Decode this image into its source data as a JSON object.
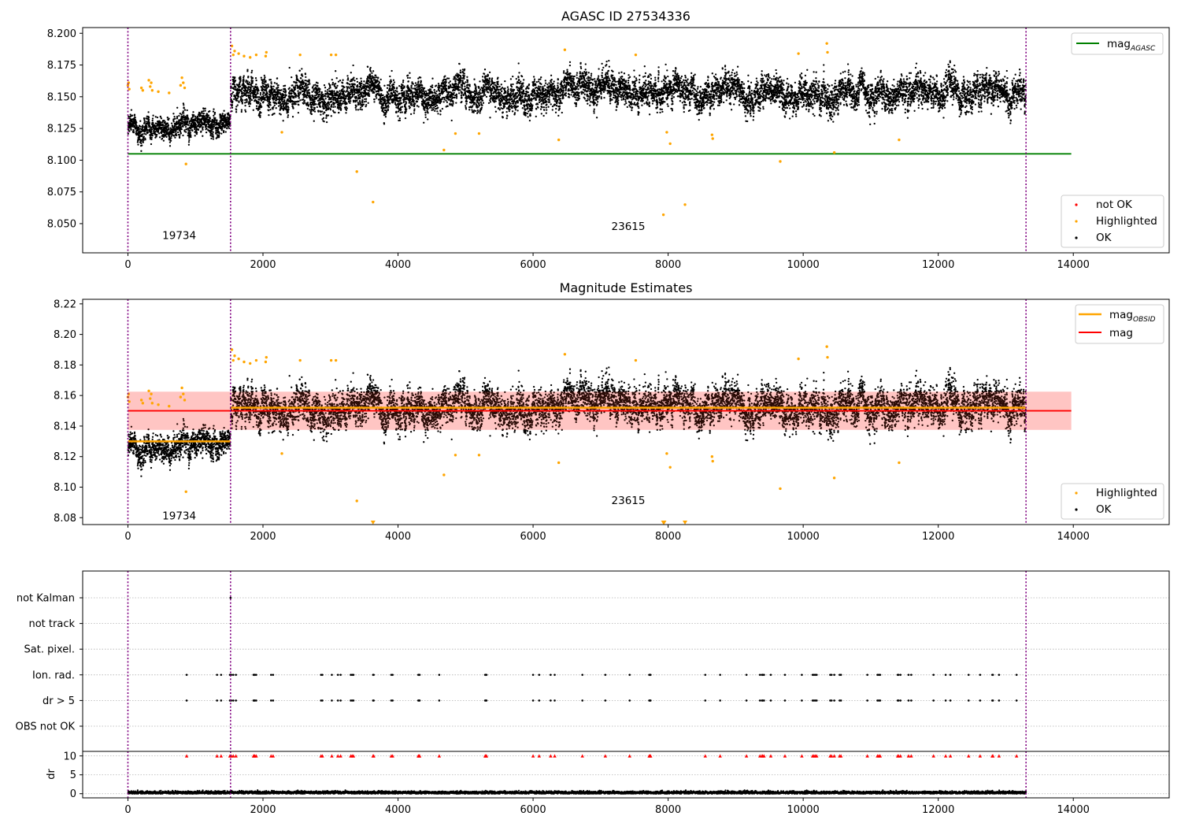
{
  "figure_title": "AGASC ID 27534336",
  "colors": {
    "ok": "#000000",
    "highlighted": "#ffa500",
    "not_ok": "#ff0000",
    "mag_agasc_line": "#008000",
    "mag_obsid_line": "#ffa500",
    "mag_line": "#ff0000",
    "mag_band": "#ffc0c8",
    "obsid_boundary": "#800080",
    "grid": "#b0b0b0"
  },
  "chart_data": [
    {
      "id": "agasc_panel",
      "type": "scatter",
      "title": "AGASC ID 27534336",
      "xlabel": "",
      "ylabel": "",
      "xlim": [
        -670,
        15420
      ],
      "ylim": [
        8.027,
        8.2045
      ],
      "xticks": [
        0,
        2000,
        4000,
        6000,
        8000,
        10000,
        12000,
        14000
      ],
      "xtick_labels": [
        "0",
        "2000",
        "4000",
        "6000",
        "8000",
        "10000",
        "12000",
        "14000"
      ],
      "yticks": [
        8.05,
        8.075,
        8.1,
        8.125,
        8.15,
        8.175,
        8.2
      ],
      "ytick_labels": [
        "8.050",
        "8.075",
        "8.100",
        "8.125",
        "8.150",
        "8.175",
        "8.200"
      ],
      "grid": false,
      "obsid_boundaries": [
        0,
        1520,
        13300
      ],
      "obsid_labels": [
        {
          "text": "19734",
          "x": 760,
          "y": 8.041
        },
        {
          "text": "23615",
          "x": 7410,
          "y": 8.048
        }
      ],
      "segments": [
        {
          "obsid": "19734",
          "x_range": [
            0,
            1520
          ],
          "mean": 8.128,
          "spread": 0.006
        },
        {
          "obsid": "23615",
          "x_range": [
            1520,
            13300
          ],
          "mean": 8.151,
          "spread": 0.0085
        }
      ],
      "mag_agasc": {
        "value": 8.105,
        "x_range": [
          0,
          13970
        ]
      },
      "highlighted_points": [
        [
          0,
          8.159
        ],
        [
          10,
          8.161
        ],
        [
          20,
          8.156
        ],
        [
          200,
          8.157
        ],
        [
          220,
          8.155
        ],
        [
          310,
          8.163
        ],
        [
          330,
          8.158
        ],
        [
          345,
          8.161
        ],
        [
          360,
          8.155
        ],
        [
          450,
          8.154
        ],
        [
          610,
          8.153
        ],
        [
          780,
          8.159
        ],
        [
          800,
          8.165
        ],
        [
          820,
          8.161
        ],
        [
          840,
          8.157
        ],
        [
          860,
          8.097
        ],
        [
          1540,
          8.19
        ],
        [
          1560,
          8.183
        ],
        [
          1580,
          8.186
        ],
        [
          1640,
          8.184
        ],
        [
          1720,
          8.182
        ],
        [
          1810,
          8.181
        ],
        [
          1900,
          8.183
        ],
        [
          2040,
          8.182
        ],
        [
          2050,
          8.185
        ],
        [
          2280,
          8.122
        ],
        [
          2550,
          8.183
        ],
        [
          3010,
          8.183
        ],
        [
          3080,
          8.183
        ],
        [
          3390,
          8.091
        ],
        [
          3630,
          8.067
        ],
        [
          4680,
          8.108
        ],
        [
          4850,
          8.121
        ],
        [
          5200,
          8.121
        ],
        [
          6380,
          8.116
        ],
        [
          6470,
          8.187
        ],
        [
          7520,
          8.183
        ],
        [
          7930,
          8.057
        ],
        [
          7980,
          8.122
        ],
        [
          8030,
          8.113
        ],
        [
          8250,
          8.065
        ],
        [
          8650,
          8.12
        ],
        [
          8660,
          8.117
        ],
        [
          9660,
          8.099
        ],
        [
          9930,
          8.184
        ],
        [
          10350,
          8.192
        ],
        [
          10360,
          8.185
        ],
        [
          10460,
          8.106
        ],
        [
          11420,
          8.116
        ]
      ],
      "not_ok_points": [],
      "legends": [
        {
          "position": "upper right",
          "items": [
            {
              "label": "mag",
              "subscript": "AGASC",
              "kind": "line",
              "color": "#008000"
            }
          ]
        },
        {
          "position": "lower right",
          "items": [
            {
              "label": "not OK",
              "kind": "dot",
              "color": "#ff0000"
            },
            {
              "label": "Highlighted",
              "kind": "dot",
              "color": "#ffa500"
            },
            {
              "label": "OK",
              "kind": "dot",
              "color": "#000000"
            }
          ]
        }
      ]
    },
    {
      "id": "magnitude_panel",
      "type": "scatter",
      "title": "Magnitude Estimates",
      "xlabel": "",
      "ylabel": "",
      "xlim": [
        -670,
        15420
      ],
      "ylim": [
        8.0755,
        8.223
      ],
      "xticks": [
        0,
        2000,
        4000,
        6000,
        8000,
        10000,
        12000,
        14000
      ],
      "xtick_labels": [
        "0",
        "2000",
        "4000",
        "6000",
        "8000",
        "10000",
        "12000",
        "14000"
      ],
      "yticks": [
        8.08,
        8.1,
        8.12,
        8.14,
        8.16,
        8.18,
        8.2,
        8.22
      ],
      "ytick_labels": [
        "8.08",
        "8.10",
        "8.12",
        "8.14",
        "8.16",
        "8.18",
        "8.20",
        "8.22"
      ],
      "grid": false,
      "obsid_boundaries": [
        0,
        1520,
        13300
      ],
      "obsid_labels": [
        {
          "text": "19734",
          "x": 760,
          "y": 8.0815
        },
        {
          "text": "23615",
          "x": 7410,
          "y": 8.0915
        }
      ],
      "segments": [
        {
          "obsid": "19734",
          "x_range": [
            0,
            1520
          ],
          "mean": 8.128,
          "spread": 0.006
        },
        {
          "obsid": "23615",
          "x_range": [
            1520,
            13300
          ],
          "mean": 8.151,
          "spread": 0.0085
        }
      ],
      "mag_obsid": [
        {
          "obsid": "19734",
          "value": 8.13,
          "x_range": [
            0,
            1520
          ]
        },
        {
          "obsid": "23615",
          "value": 8.152,
          "x_range": [
            1520,
            13300
          ]
        }
      ],
      "mag": {
        "value": 8.15,
        "band": [
          8.1375,
          8.1625
        ],
        "x_range": [
          0,
          13970
        ]
      },
      "highlighted_points": [
        [
          0,
          8.159
        ],
        [
          10,
          8.161
        ],
        [
          20,
          8.156
        ],
        [
          200,
          8.157
        ],
        [
          220,
          8.155
        ],
        [
          310,
          8.163
        ],
        [
          330,
          8.158
        ],
        [
          345,
          8.161
        ],
        [
          360,
          8.155
        ],
        [
          450,
          8.154
        ],
        [
          610,
          8.153
        ],
        [
          780,
          8.159
        ],
        [
          800,
          8.165
        ],
        [
          820,
          8.161
        ],
        [
          840,
          8.157
        ],
        [
          860,
          8.097
        ],
        [
          1540,
          8.19
        ],
        [
          1560,
          8.183
        ],
        [
          1580,
          8.186
        ],
        [
          1640,
          8.184
        ],
        [
          1720,
          8.182
        ],
        [
          1810,
          8.181
        ],
        [
          1900,
          8.183
        ],
        [
          2040,
          8.182
        ],
        [
          2050,
          8.185
        ],
        [
          2280,
          8.122
        ],
        [
          2550,
          8.183
        ],
        [
          3010,
          8.183
        ],
        [
          3080,
          8.183
        ],
        [
          3390,
          8.091
        ],
        [
          4680,
          8.108
        ],
        [
          4850,
          8.121
        ],
        [
          5200,
          8.121
        ],
        [
          6380,
          8.116
        ],
        [
          6470,
          8.187
        ],
        [
          7520,
          8.183
        ],
        [
          7980,
          8.122
        ],
        [
          8030,
          8.113
        ],
        [
          8650,
          8.12
        ],
        [
          8660,
          8.117
        ],
        [
          9660,
          8.099
        ],
        [
          9930,
          8.184
        ],
        [
          10350,
          8.192
        ],
        [
          10360,
          8.185
        ],
        [
          10460,
          8.106
        ],
        [
          11420,
          8.116
        ]
      ],
      "out_of_range_markers": [
        3630,
        7930,
        7940,
        8250
      ],
      "legends": [
        {
          "position": "upper right",
          "items": [
            {
              "label": "mag",
              "subscript": "OBSID",
              "kind": "line",
              "color": "#ffa500"
            },
            {
              "label": "mag",
              "kind": "line",
              "color": "#ff0000"
            }
          ]
        },
        {
          "position": "lower right",
          "items": [
            {
              "label": "Highlighted",
              "kind": "dot",
              "color": "#ffa500"
            },
            {
              "label": "OK",
              "kind": "dot",
              "color": "#000000"
            }
          ]
        }
      ]
    },
    {
      "id": "flags_panel",
      "type": "scatter",
      "xlabel": "",
      "ylabel": "",
      "xlim": [
        -670,
        15420
      ],
      "categories": [
        "not Kalman",
        "not track",
        "Sat. pixel.",
        "Ion. rad.",
        "dr > 5",
        "OBS not OK"
      ],
      "grid": true,
      "obsid_boundaries": [
        0,
        1520,
        13300
      ],
      "flag_points": {
        "not Kalman": [
          1520
        ],
        "not track": [],
        "Sat. pixel.": [],
        "Ion. rad.": [
          870,
          1320,
          1380,
          1510,
          1530,
          1560,
          1600,
          1860,
          1870,
          1880,
          1900,
          2120,
          2150,
          2860,
          2880,
          3020,
          3110,
          3150,
          3300,
          3320,
          3340,
          3630,
          3640,
          3900,
          3920,
          4300,
          4310,
          4320,
          4610,
          5290,
          5300,
          5310,
          6000,
          6090,
          6260,
          6320,
          6730,
          7070,
          7430,
          7720,
          7730,
          7740,
          8550,
          8770,
          9160,
          9360,
          9390,
          9400,
          9420,
          9520,
          9730,
          9980,
          10140,
          10160,
          10180,
          10200,
          10400,
          10420,
          10460,
          10540,
          10560,
          10950,
          11100,
          11120,
          11140,
          11400,
          11410,
          11440,
          11560,
          11600,
          11930,
          12110,
          12180,
          12450,
          12620,
          12800,
          12810,
          12900,
          13160
        ],
        "dr > 5": [
          870,
          1320,
          1380,
          1510,
          1530,
          1560,
          1600,
          1860,
          1870,
          1880,
          1900,
          2120,
          2150,
          2860,
          2880,
          3020,
          3110,
          3150,
          3300,
          3320,
          3340,
          3630,
          3640,
          3900,
          3920,
          4300,
          4310,
          4320,
          4610,
          5290,
          5300,
          5310,
          6000,
          6090,
          6260,
          6320,
          6730,
          7070,
          7430,
          7720,
          7730,
          7740,
          8550,
          8770,
          9160,
          9360,
          9390,
          9400,
          9420,
          9520,
          9730,
          9980,
          10140,
          10160,
          10180,
          10200,
          10400,
          10420,
          10460,
          10540,
          10560,
          10950,
          11100,
          11120,
          11140,
          11400,
          11410,
          11440,
          11560,
          11600,
          11930,
          12110,
          12180,
          12450,
          12620,
          12800,
          12810,
          12900,
          13160
        ],
        "OBS not OK": []
      }
    },
    {
      "id": "dr_panel",
      "type": "scatter",
      "xlabel": "",
      "ylabel": "dr",
      "xlim": [
        -670,
        15420
      ],
      "ylim": [
        -1.1,
        11.2
      ],
      "xticks": [
        0,
        2000,
        4000,
        6000,
        8000,
        10000,
        12000,
        14000
      ],
      "xtick_labels": [
        "0",
        "2000",
        "4000",
        "6000",
        "8000",
        "10000",
        "12000",
        "14000"
      ],
      "yticks": [
        0,
        5,
        10
      ],
      "ytick_labels": [
        "0",
        "5",
        "10"
      ],
      "grid": true,
      "obsid_boundaries": [
        0,
        1520,
        13300
      ],
      "baseline": {
        "mean": 0.3,
        "spread": 0.25,
        "x_range": [
          0,
          13300
        ]
      },
      "capped_value": 10,
      "capped_points": [
        870,
        1320,
        1380,
        1510,
        1530,
        1560,
        1600,
        1860,
        1870,
        1880,
        1900,
        2120,
        2150,
        2860,
        2880,
        3020,
        3110,
        3150,
        3300,
        3320,
        3340,
        3630,
        3640,
        3900,
        3920,
        4300,
        4310,
        4320,
        4610,
        5290,
        5300,
        5310,
        6000,
        6090,
        6260,
        6320,
        6730,
        7070,
        7430,
        7720,
        7730,
        7740,
        8550,
        8770,
        9160,
        9360,
        9390,
        9400,
        9420,
        9520,
        9730,
        9980,
        10140,
        10160,
        10180,
        10200,
        10400,
        10420,
        10460,
        10540,
        10560,
        10950,
        11100,
        11120,
        11140,
        11400,
        11410,
        11440,
        11560,
        11600,
        11930,
        12110,
        12180,
        12450,
        12620,
        12800,
        12810,
        12900,
        13160
      ]
    }
  ]
}
